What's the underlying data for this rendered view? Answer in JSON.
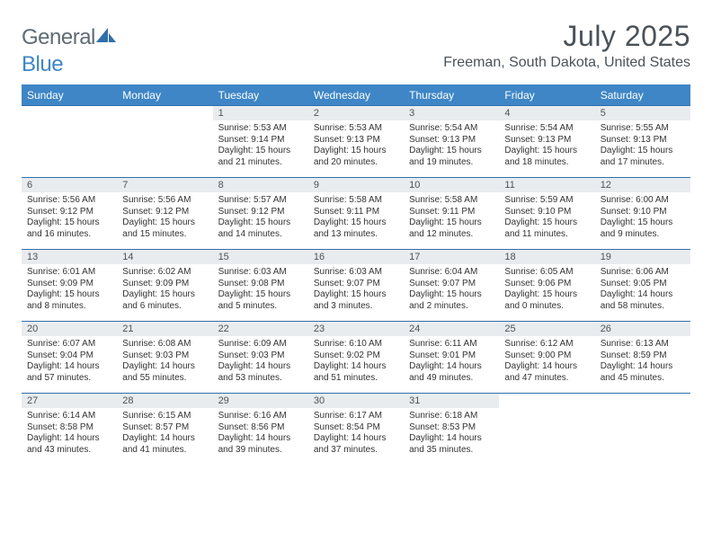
{
  "brand": {
    "name_a": "General",
    "name_b": "Blue"
  },
  "title": "July 2025",
  "location": "Freeman, South Dakota, United States",
  "colors": {
    "header_bg": "#3e86c6",
    "rule": "#2f6faa",
    "daynum_bg": "#e9ecef",
    "text_dark": "#4a5258",
    "body_text": "#333333",
    "logo_grey": "#5f6b74",
    "logo_blue": "#3e86c6",
    "page_bg": "#ffffff"
  },
  "fonts": {
    "base_family": "Arial",
    "title_pt": 32,
    "location_pt": 16,
    "dow_pt": 12,
    "daynum_pt": 11,
    "body_pt": 10
  },
  "days_of_week": [
    "Sunday",
    "Monday",
    "Tuesday",
    "Wednesday",
    "Thursday",
    "Friday",
    "Saturday"
  ],
  "weeks": [
    [
      {
        "n": "",
        "lines": [
          "",
          "",
          "",
          ""
        ]
      },
      {
        "n": "",
        "lines": [
          "",
          "",
          "",
          ""
        ]
      },
      {
        "n": "1",
        "lines": [
          "Sunrise: 5:53 AM",
          "Sunset: 9:14 PM",
          "Daylight: 15 hours",
          "and 21 minutes."
        ]
      },
      {
        "n": "2",
        "lines": [
          "Sunrise: 5:53 AM",
          "Sunset: 9:13 PM",
          "Daylight: 15 hours",
          "and 20 minutes."
        ]
      },
      {
        "n": "3",
        "lines": [
          "Sunrise: 5:54 AM",
          "Sunset: 9:13 PM",
          "Daylight: 15 hours",
          "and 19 minutes."
        ]
      },
      {
        "n": "4",
        "lines": [
          "Sunrise: 5:54 AM",
          "Sunset: 9:13 PM",
          "Daylight: 15 hours",
          "and 18 minutes."
        ]
      },
      {
        "n": "5",
        "lines": [
          "Sunrise: 5:55 AM",
          "Sunset: 9:13 PM",
          "Daylight: 15 hours",
          "and 17 minutes."
        ]
      }
    ],
    [
      {
        "n": "6",
        "lines": [
          "Sunrise: 5:56 AM",
          "Sunset: 9:12 PM",
          "Daylight: 15 hours",
          "and 16 minutes."
        ]
      },
      {
        "n": "7",
        "lines": [
          "Sunrise: 5:56 AM",
          "Sunset: 9:12 PM",
          "Daylight: 15 hours",
          "and 15 minutes."
        ]
      },
      {
        "n": "8",
        "lines": [
          "Sunrise: 5:57 AM",
          "Sunset: 9:12 PM",
          "Daylight: 15 hours",
          "and 14 minutes."
        ]
      },
      {
        "n": "9",
        "lines": [
          "Sunrise: 5:58 AM",
          "Sunset: 9:11 PM",
          "Daylight: 15 hours",
          "and 13 minutes."
        ]
      },
      {
        "n": "10",
        "lines": [
          "Sunrise: 5:58 AM",
          "Sunset: 9:11 PM",
          "Daylight: 15 hours",
          "and 12 minutes."
        ]
      },
      {
        "n": "11",
        "lines": [
          "Sunrise: 5:59 AM",
          "Sunset: 9:10 PM",
          "Daylight: 15 hours",
          "and 11 minutes."
        ]
      },
      {
        "n": "12",
        "lines": [
          "Sunrise: 6:00 AM",
          "Sunset: 9:10 PM",
          "Daylight: 15 hours",
          "and 9 minutes."
        ]
      }
    ],
    [
      {
        "n": "13",
        "lines": [
          "Sunrise: 6:01 AM",
          "Sunset: 9:09 PM",
          "Daylight: 15 hours",
          "and 8 minutes."
        ]
      },
      {
        "n": "14",
        "lines": [
          "Sunrise: 6:02 AM",
          "Sunset: 9:09 PM",
          "Daylight: 15 hours",
          "and 6 minutes."
        ]
      },
      {
        "n": "15",
        "lines": [
          "Sunrise: 6:03 AM",
          "Sunset: 9:08 PM",
          "Daylight: 15 hours",
          "and 5 minutes."
        ]
      },
      {
        "n": "16",
        "lines": [
          "Sunrise: 6:03 AM",
          "Sunset: 9:07 PM",
          "Daylight: 15 hours",
          "and 3 minutes."
        ]
      },
      {
        "n": "17",
        "lines": [
          "Sunrise: 6:04 AM",
          "Sunset: 9:07 PM",
          "Daylight: 15 hours",
          "and 2 minutes."
        ]
      },
      {
        "n": "18",
        "lines": [
          "Sunrise: 6:05 AM",
          "Sunset: 9:06 PM",
          "Daylight: 15 hours",
          "and 0 minutes."
        ]
      },
      {
        "n": "19",
        "lines": [
          "Sunrise: 6:06 AM",
          "Sunset: 9:05 PM",
          "Daylight: 14 hours",
          "and 58 minutes."
        ]
      }
    ],
    [
      {
        "n": "20",
        "lines": [
          "Sunrise: 6:07 AM",
          "Sunset: 9:04 PM",
          "Daylight: 14 hours",
          "and 57 minutes."
        ]
      },
      {
        "n": "21",
        "lines": [
          "Sunrise: 6:08 AM",
          "Sunset: 9:03 PM",
          "Daylight: 14 hours",
          "and 55 minutes."
        ]
      },
      {
        "n": "22",
        "lines": [
          "Sunrise: 6:09 AM",
          "Sunset: 9:03 PM",
          "Daylight: 14 hours",
          "and 53 minutes."
        ]
      },
      {
        "n": "23",
        "lines": [
          "Sunrise: 6:10 AM",
          "Sunset: 9:02 PM",
          "Daylight: 14 hours",
          "and 51 minutes."
        ]
      },
      {
        "n": "24",
        "lines": [
          "Sunrise: 6:11 AM",
          "Sunset: 9:01 PM",
          "Daylight: 14 hours",
          "and 49 minutes."
        ]
      },
      {
        "n": "25",
        "lines": [
          "Sunrise: 6:12 AM",
          "Sunset: 9:00 PM",
          "Daylight: 14 hours",
          "and 47 minutes."
        ]
      },
      {
        "n": "26",
        "lines": [
          "Sunrise: 6:13 AM",
          "Sunset: 8:59 PM",
          "Daylight: 14 hours",
          "and 45 minutes."
        ]
      }
    ],
    [
      {
        "n": "27",
        "lines": [
          "Sunrise: 6:14 AM",
          "Sunset: 8:58 PM",
          "Daylight: 14 hours",
          "and 43 minutes."
        ]
      },
      {
        "n": "28",
        "lines": [
          "Sunrise: 6:15 AM",
          "Sunset: 8:57 PM",
          "Daylight: 14 hours",
          "and 41 minutes."
        ]
      },
      {
        "n": "29",
        "lines": [
          "Sunrise: 6:16 AM",
          "Sunset: 8:56 PM",
          "Daylight: 14 hours",
          "and 39 minutes."
        ]
      },
      {
        "n": "30",
        "lines": [
          "Sunrise: 6:17 AM",
          "Sunset: 8:54 PM",
          "Daylight: 14 hours",
          "and 37 minutes."
        ]
      },
      {
        "n": "31",
        "lines": [
          "Sunrise: 6:18 AM",
          "Sunset: 8:53 PM",
          "Daylight: 14 hours",
          "and 35 minutes."
        ]
      },
      {
        "n": "",
        "lines": [
          "",
          "",
          "",
          ""
        ]
      },
      {
        "n": "",
        "lines": [
          "",
          "",
          "",
          ""
        ]
      }
    ]
  ]
}
